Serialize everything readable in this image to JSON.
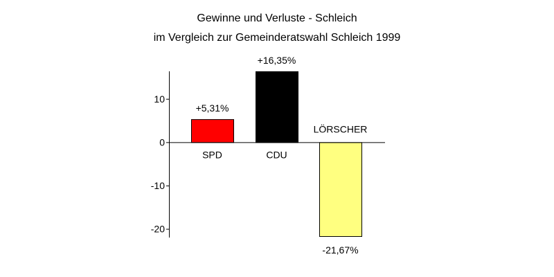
{
  "title": "Gewinne und Verluste - Schleich",
  "subtitle": "im Vergleich zur Gemeinderatswahl Schleich 1999",
  "chart_data": {
    "type": "bar",
    "title": "Gewinne und Verluste - Schleich",
    "subtitle": "im Vergleich zur Gemeinderatswahl Schleich 1999",
    "xlabel": "",
    "ylabel": "",
    "categories": [
      "SPD",
      "CDU",
      "LÖRSCHER"
    ],
    "values": [
      5.31,
      16.35,
      -21.67
    ],
    "data_labels": [
      "+5,31%",
      "+16,35%",
      "-21,67%"
    ],
    "colors": [
      "#ff0000",
      "#000000",
      "#ffff80"
    ],
    "yticks": [
      -20,
      -10,
      0,
      10
    ],
    "ytick_labels": [
      "-20",
      "-10",
      "0",
      "10"
    ],
    "ylim": [
      -21.67,
      16.35
    ],
    "grid": false,
    "legend": "none"
  }
}
